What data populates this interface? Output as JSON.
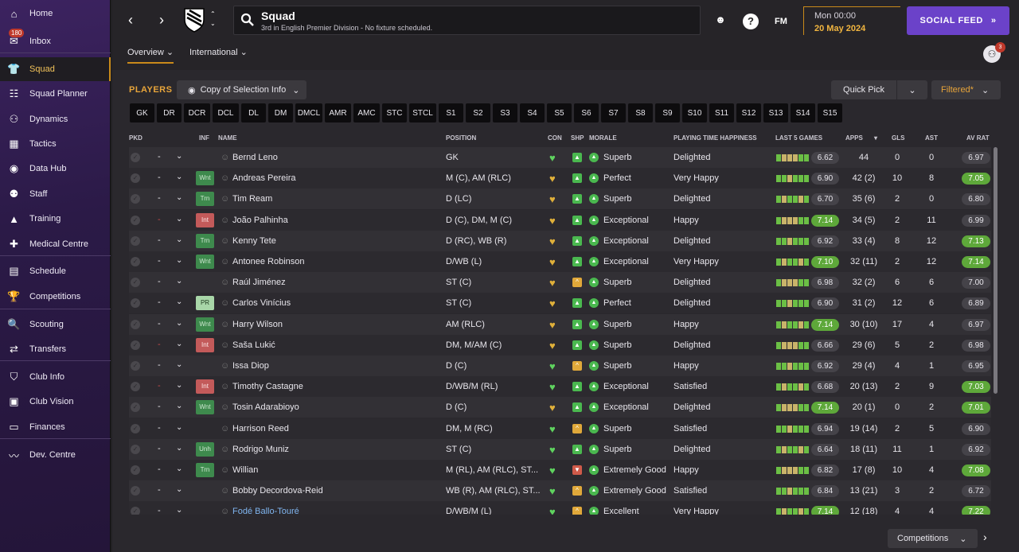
{
  "sidebar": {
    "items": [
      {
        "label": "Home",
        "icon": "home-icon",
        "glyph": "⌂"
      },
      {
        "label": "Inbox",
        "icon": "inbox-icon",
        "glyph": "✉",
        "badge": "180"
      },
      {
        "label": "Squad",
        "icon": "squad-icon",
        "glyph": "👕",
        "active": true
      },
      {
        "label": "Squad Planner",
        "icon": "planner-icon",
        "glyph": "☷"
      },
      {
        "label": "Dynamics",
        "icon": "dynamics-icon",
        "glyph": "⚇"
      },
      {
        "label": "Tactics",
        "icon": "tactics-icon",
        "glyph": "▦"
      },
      {
        "label": "Data Hub",
        "icon": "data-hub-icon",
        "glyph": "◉"
      },
      {
        "label": "Staff",
        "icon": "staff-icon",
        "glyph": "⚉"
      },
      {
        "label": "Training",
        "icon": "training-icon",
        "glyph": "▲"
      },
      {
        "label": "Medical Centre",
        "icon": "medical-icon",
        "glyph": "✚"
      },
      {
        "label": "Schedule",
        "icon": "schedule-icon",
        "glyph": "▤"
      },
      {
        "label": "Competitions",
        "icon": "trophy-icon",
        "glyph": "🏆"
      },
      {
        "label": "Scouting",
        "icon": "scouting-icon",
        "glyph": "🔍"
      },
      {
        "label": "Transfers",
        "icon": "transfers-icon",
        "glyph": "⇄"
      },
      {
        "label": "Club Info",
        "icon": "club-info-icon",
        "glyph": "⛉"
      },
      {
        "label": "Club Vision",
        "icon": "club-vision-icon",
        "glyph": "▣"
      },
      {
        "label": "Finances",
        "icon": "finances-icon",
        "glyph": "▭"
      },
      {
        "label": "Dev. Centre",
        "icon": "dev-centre-icon",
        "glyph": "〰"
      }
    ]
  },
  "header": {
    "title": "Squad",
    "subtitle": "3rd in English Premier Division - No fixture scheduled.",
    "date_line1": "Mon 00:00",
    "date_line2": "20 May 2024",
    "social_label": "SOCIAL FEED",
    "fm_label": "FM",
    "help_label": "?",
    "friends_count": "3",
    "tabs": [
      {
        "label": "Overview"
      },
      {
        "label": "International"
      }
    ]
  },
  "toolbar": {
    "players_label": "PLAYERS",
    "copy_label": "Copy of Selection Info",
    "quick_pick_label": "Quick Pick",
    "filtered_label": "Filtered*"
  },
  "position_chips": [
    "GK",
    "DR",
    "DCR",
    "DCL",
    "DL",
    "DM",
    "DMCL",
    "AMR",
    "AMC",
    "STC",
    "STCL",
    "S1",
    "S2",
    "S3",
    "S4",
    "S5",
    "S6",
    "S7",
    "S8",
    "S9",
    "S10",
    "S11",
    "S12",
    "S13",
    "S14",
    "S15"
  ],
  "columns": {
    "pkd": "PKD",
    "inf": "INF",
    "name": "NAME",
    "position": "POSITION",
    "con": "CON",
    "shp": "SHP",
    "morale": "MORALE",
    "pth": "PLAYING TIME HAPPINESS",
    "last5": "LAST 5 GAMES",
    "apps": "APPS",
    "gls": "GLS",
    "ast": "AST",
    "avrat": "AV RAT"
  },
  "players": [
    {
      "name": "Bernd Leno",
      "inf": "",
      "pos": "GK",
      "con": "green",
      "shp": "up",
      "morale": "Superb",
      "pth": "Delighted",
      "last": "6.62",
      "apps": "44",
      "gls": "0",
      "ast": "0",
      "av": "6.97",
      "dash_red": false
    },
    {
      "name": "Andreas Pereira",
      "inf": "Wnt",
      "pos": "M (C), AM (RLC)",
      "con": "gold",
      "shp": "up",
      "morale": "Perfect",
      "pth": "Very Happy",
      "last": "6.90",
      "apps": "42 (2)",
      "gls": "10",
      "ast": "8",
      "av": "7.05",
      "dash_red": false
    },
    {
      "name": "Tim Ream",
      "inf": "Trn",
      "pos": "D (LC)",
      "con": "gold",
      "shp": "up",
      "morale": "Superb",
      "pth": "Delighted",
      "last": "6.70",
      "apps": "35 (6)",
      "gls": "2",
      "ast": "0",
      "av": "6.80",
      "dash_red": false
    },
    {
      "name": "João Palhinha",
      "inf": "Int",
      "pos": "D (C), DM, M (C)",
      "con": "gold",
      "shp": "up",
      "morale": "Exceptional",
      "pth": "Happy",
      "last": "7.14",
      "apps": "34 (5)",
      "gls": "2",
      "ast": "11",
      "av": "6.99",
      "dash_red": true
    },
    {
      "name": "Kenny Tete",
      "inf": "Trn",
      "pos": "D (RC), WB (R)",
      "con": "gold",
      "shp": "up",
      "morale": "Exceptional",
      "pth": "Delighted",
      "last": "6.92",
      "apps": "33 (4)",
      "gls": "8",
      "ast": "12",
      "av": "7.13",
      "dash_red": false
    },
    {
      "name": "Antonee Robinson",
      "inf": "Wnt",
      "pos": "D/WB (L)",
      "con": "gold",
      "shp": "up",
      "morale": "Exceptional",
      "pth": "Very Happy",
      "last": "7.10",
      "apps": "32 (11)",
      "gls": "2",
      "ast": "12",
      "av": "7.14",
      "dash_red": false
    },
    {
      "name": "Raúl Jiménez",
      "inf": "",
      "pos": "ST (C)",
      "con": "gold",
      "shp": "warn",
      "morale": "Superb",
      "pth": "Delighted",
      "last": "6.98",
      "apps": "32 (2)",
      "gls": "6",
      "ast": "6",
      "av": "7.00",
      "dash_red": false
    },
    {
      "name": "Carlos Vinícius",
      "inf": "PR",
      "pos": "ST (C)",
      "con": "gold",
      "shp": "up",
      "morale": "Perfect",
      "pth": "Delighted",
      "last": "6.90",
      "apps": "31 (2)",
      "gls": "12",
      "ast": "6",
      "av": "6.89",
      "dash_red": false
    },
    {
      "name": "Harry Wilson",
      "inf": "Wnt",
      "pos": "AM (RLC)",
      "con": "gold",
      "shp": "up",
      "morale": "Superb",
      "pth": "Happy",
      "last": "7.14",
      "apps": "30 (10)",
      "gls": "17",
      "ast": "4",
      "av": "6.97",
      "dash_red": false
    },
    {
      "name": "Saša Lukić",
      "inf": "Int",
      "pos": "DM, M/AM (C)",
      "con": "gold",
      "shp": "up",
      "morale": "Superb",
      "pth": "Delighted",
      "last": "6.66",
      "apps": "29 (6)",
      "gls": "5",
      "ast": "2",
      "av": "6.98",
      "dash_red": true
    },
    {
      "name": "Issa Diop",
      "inf": "",
      "pos": "D (C)",
      "con": "green",
      "shp": "warn",
      "morale": "Superb",
      "pth": "Happy",
      "last": "6.92",
      "apps": "29 (4)",
      "gls": "4",
      "ast": "1",
      "av": "6.95",
      "dash_red": false
    },
    {
      "name": "Timothy Castagne",
      "inf": "Int",
      "pos": "D/WB/M (RL)",
      "con": "green",
      "shp": "up",
      "morale": "Exceptional",
      "pth": "Satisfied",
      "last": "6.68",
      "apps": "20 (13)",
      "gls": "2",
      "ast": "9",
      "av": "7.03",
      "dash_red": true
    },
    {
      "name": "Tosin Adarabioyo",
      "inf": "Wnt",
      "pos": "D (C)",
      "con": "gold",
      "shp": "up",
      "morale": "Exceptional",
      "pth": "Delighted",
      "last": "7.14",
      "apps": "20 (1)",
      "gls": "0",
      "ast": "2",
      "av": "7.01",
      "dash_red": false
    },
    {
      "name": "Harrison Reed",
      "inf": "",
      "pos": "DM, M (RC)",
      "con": "green",
      "shp": "warn",
      "morale": "Superb",
      "pth": "Satisfied",
      "last": "6.94",
      "apps": "19 (14)",
      "gls": "2",
      "ast": "5",
      "av": "6.90",
      "dash_red": false
    },
    {
      "name": "Rodrigo Muniz",
      "inf": "Unh",
      "pos": "ST (C)",
      "con": "green",
      "shp": "up",
      "morale": "Superb",
      "pth": "Delighted",
      "last": "6.64",
      "apps": "18 (11)",
      "gls": "11",
      "ast": "1",
      "av": "6.92",
      "dash_red": false
    },
    {
      "name": "Willian",
      "inf": "Trn",
      "pos": "M (RL), AM (RLC), ST...",
      "con": "green",
      "shp": "down",
      "morale": "Extremely Good",
      "pth": "Happy",
      "last": "6.82",
      "apps": "17 (8)",
      "gls": "10",
      "ast": "4",
      "av": "7.08",
      "dash_red": false
    },
    {
      "name": "Bobby Decordova-Reid",
      "inf": "",
      "pos": "WB (R), AM (RLC), ST...",
      "con": "green",
      "shp": "warn",
      "morale": "Extremely Good",
      "pth": "Satisfied",
      "last": "6.84",
      "apps": "13 (21)",
      "gls": "3",
      "ast": "2",
      "av": "6.72",
      "dash_red": false
    },
    {
      "name": "Fodé Ballo-Touré",
      "inf": "",
      "pos": "D/WB/M (L)",
      "con": "green",
      "shp": "warn",
      "morale": "Excellent",
      "pth": "Very Happy",
      "last": "7.14",
      "apps": "12 (18)",
      "gls": "4",
      "ast": "4",
      "av": "7.22",
      "dash_red": false,
      "blue": true
    }
  ],
  "footer": {
    "competitions_label": "Competitions"
  },
  "colors": {
    "accent": "#e8a53a",
    "purple": "#6b42c9",
    "green": "#5ea83a",
    "red": "#c35a5a"
  }
}
